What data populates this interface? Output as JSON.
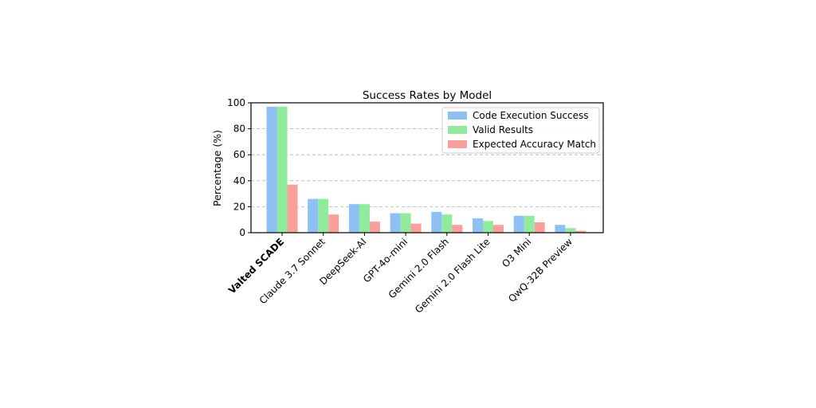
{
  "chart_data": {
    "type": "bar",
    "title": "Success Rates by Model",
    "xlabel": "",
    "ylabel": "Percentage (%)",
    "ylim": [
      0,
      100
    ],
    "yticks": [
      0,
      20,
      40,
      60,
      80,
      100
    ],
    "grid": true,
    "legend_position": "top-right",
    "categories": [
      "Valted SCADE",
      "Claude 3.7 Sonnet",
      "DeepSeek-AI",
      "GPT-4o-mini",
      "Gemini 2.0 Flash",
      "Gemini 2.0 Flash Lite",
      "O3 Mini",
      "QwQ-32B Preview"
    ],
    "bold_categories": [
      "Valted SCADE"
    ],
    "series": [
      {
        "name": "Code Execution Success",
        "color": "#8fc0f5",
        "values": [
          97,
          26,
          22,
          15,
          16,
          11,
          13,
          6
        ]
      },
      {
        "name": "Valid Results",
        "color": "#90eb9d",
        "values": [
          97,
          26,
          22,
          15,
          14,
          9,
          13,
          3.5
        ]
      },
      {
        "name": "Expected Accuracy Match",
        "color": "#fa9f99",
        "values": [
          37,
          14,
          8.5,
          7,
          6,
          6,
          8,
          1.5
        ]
      }
    ]
  }
}
